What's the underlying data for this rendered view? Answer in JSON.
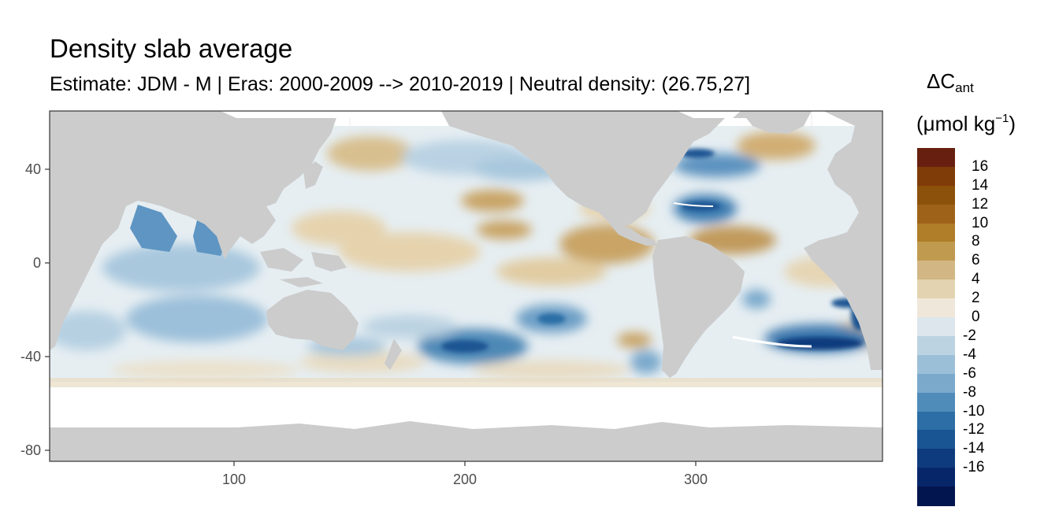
{
  "title": "Density slab average",
  "subtitle": "Estimate: JDM - M | Eras: 2000-2009 --> 2010-2019 | Neutral density: (26.75,27]",
  "legend": {
    "title_symbol": "ΔC",
    "title_subscript": "ant",
    "title_unit_open": "(μmol kg",
    "title_unit_sup": "−1",
    "title_unit_close": ")",
    "labels": [
      "16",
      "14",
      "12",
      "10",
      "8",
      "6",
      "4",
      "2",
      "0",
      "-2",
      "-4",
      "-6",
      "-8",
      "-10",
      "-12",
      "-14",
      "-16"
    ],
    "colors": [
      "#67200f",
      "#7f3b08",
      "#8c510a",
      "#9e6218",
      "#b07d28",
      "#bf9a4f",
      "#d2b784",
      "#e3d3b0",
      "#efe8da",
      "#dde6ec",
      "#bcd3e2",
      "#9cbfd8",
      "#7aa9cc",
      "#4f8cba",
      "#2c6ea5",
      "#1a5593",
      "#0e3b7d",
      "#07266a",
      "#03154f"
    ]
  },
  "axes": {
    "x_ticks": [
      "100",
      "200",
      "300"
    ],
    "y_ticks": [
      "40",
      "0",
      "-40",
      "-80"
    ]
  },
  "map_colors": {
    "panel_background": "#ffffff",
    "land": "#cccccc",
    "grid": "#ebebeb",
    "border": "#333333"
  }
}
